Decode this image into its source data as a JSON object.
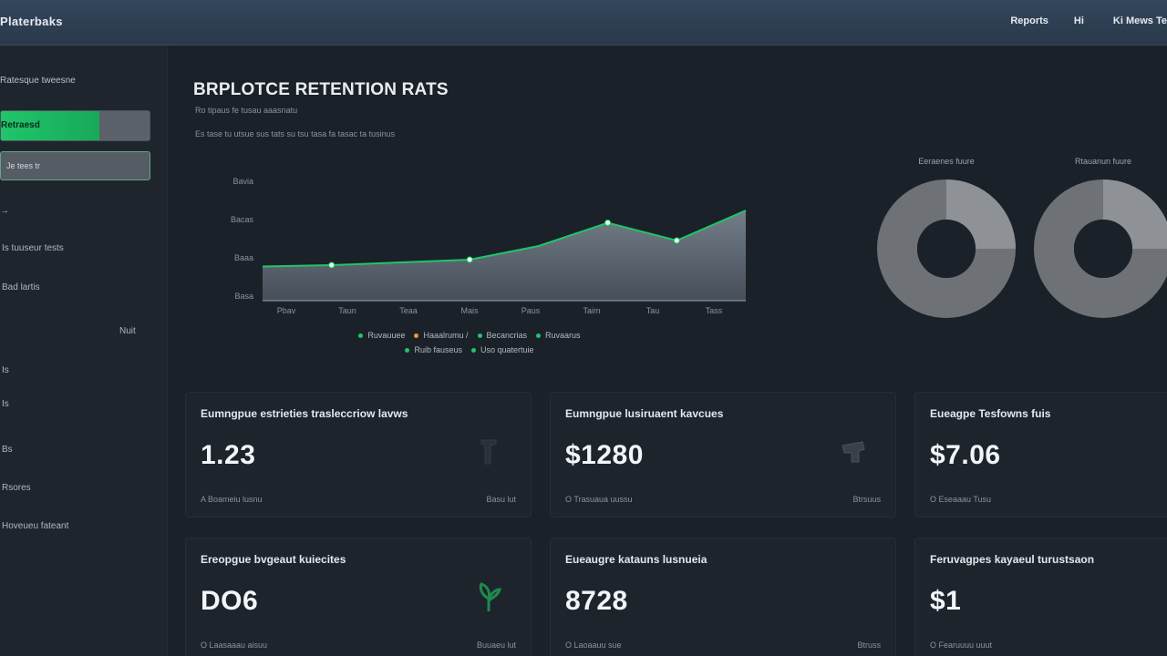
{
  "topbar": {
    "brand": "Platerbaks",
    "nav": [
      "Reports",
      "Hi",
      "Ki Mews Te"
    ]
  },
  "sidebar": {
    "section_title": "Ratesque tweesne",
    "active_button": "Retraesd",
    "plain_button": "Je tees tr",
    "items": [
      "→",
      "Is tuuseur tests",
      "Bad lartis",
      "Nuit",
      "Is",
      "Is",
      "Bs",
      "Rsores",
      "Hoveueu fateant"
    ],
    "accent": "#20c56a"
  },
  "main": {
    "title": "BRPLOTCE RETENTION RATS",
    "subtitle": "Ro tipaus fe   tusau aaasnatu",
    "subtitle2": "Es tase tu utsue sus tats su tsu tasa fa tasac ta tusinus"
  },
  "chart_data": {
    "type": "area",
    "x": [
      "Pbav",
      "Taun",
      "Teaa",
      "Mais",
      "Paus",
      "Taim",
      "Tau",
      "Tass"
    ],
    "ytick_labels": [
      "Bavia",
      "Bacas",
      "Baaa",
      "Basa"
    ],
    "series": [
      {
        "values": [
          0.25,
          0.26,
          0.28,
          0.3,
          0.4,
          0.57,
          0.44,
          0.66
        ]
      }
    ],
    "ylim": [
      0,
      1
    ],
    "legend": [
      [
        "Ruvauuee",
        "Haaalrumu /",
        "Becancrias",
        "Ruvaarus"
      ],
      [
        "Ruib fauseus",
        "Uso quatertuie"
      ]
    ],
    "legend_colors": [
      "#20c56a",
      "#e0a030",
      "#20c56a",
      "#20c56a",
      "#20c56a",
      "#20c56a"
    ],
    "line_color": "#20c56a",
    "grid": false
  },
  "donuts": [
    {
      "label": "Eeraenes fuure",
      "value": 0.25,
      "color_main": "#6e7176",
      "color_accent": "#8e9196"
    },
    {
      "label": "Rtauanun fuure",
      "value": 0.25,
      "color_main": "#6e7176",
      "color_accent": "#8e9196"
    }
  ],
  "cards": [
    {
      "title": "Eumngpue estrieties trasleccriow lavws",
      "value": "1.23",
      "footer": "A   Boameiu lusnu",
      "link": "Basu lut",
      "icon": "cursor-icon"
    },
    {
      "title": "Eumngpue lusiruaent kavcues",
      "value": "$1280",
      "footer": "O   Trasuaua uussu",
      "link": "Btrsuus",
      "icon": "hand-icon"
    },
    {
      "title": "Eueagpe Tesfowns fuis",
      "value": "$7.06",
      "footer": "O   Eseaaau Tusu",
      "link": "",
      "icon": ""
    },
    {
      "title": "Ereopgue bvgeaut kuiecites",
      "value": "DO6",
      "footer": "O   Laasaaau aisuu",
      "link": "Buuaeu lut",
      "icon": "plant-icon"
    },
    {
      "title": "Eueaugre katauns lusnueia",
      "value": "8728",
      "footer": "O   Laoaauu sue",
      "link": "Btruss",
      "icon": ""
    },
    {
      "title": "Feruvagpes kayaeul turustsaon",
      "value": "$1",
      "footer": "O   Fearuuuu uuut",
      "link": "",
      "icon": ""
    }
  ]
}
